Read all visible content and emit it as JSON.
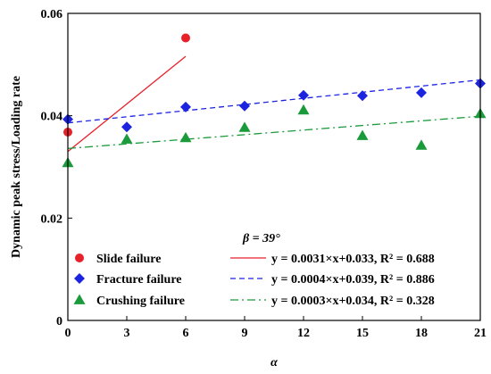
{
  "chart_data": {
    "type": "scatter",
    "title": "",
    "xlabel": "α",
    "ylabel": "Dynamic peak stress/Loading rate",
    "xlim": [
      0,
      21
    ],
    "ylim": [
      0,
      0.06
    ],
    "x_ticks": [
      "0",
      "3",
      "6",
      "9",
      "12",
      "15",
      "18",
      "21"
    ],
    "y_ticks": [
      "0",
      "0.02",
      "0.04",
      "0.06"
    ],
    "annotation": "β = 39°",
    "legend_position": "bottom-left",
    "series": [
      {
        "name": "Slide failure",
        "marker": "circle",
        "color": "#e8202a",
        "x": [
          0,
          6
        ],
        "y": [
          0.0368,
          0.0552
        ],
        "fit": {
          "label": "y = 0.0031×x+0.033, R² = 0.688",
          "slope": 0.0031,
          "intercept": 0.033,
          "x_range": [
            0,
            6
          ],
          "line_style": "solid"
        }
      },
      {
        "name": "Fracture failure",
        "marker": "diamond",
        "color": "#1c24e0",
        "x": [
          0,
          3,
          6,
          9,
          12,
          15,
          18,
          21
        ],
        "y": [
          0.0393,
          0.0378,
          0.0417,
          0.0419,
          0.044,
          0.0439,
          0.0445,
          0.0463
        ],
        "fit": {
          "label": "y = 0.0004×x+0.039, R² = 0.886",
          "slope": 0.0004,
          "intercept": 0.0386,
          "x_range": [
            0,
            21
          ],
          "line_style": "dashed"
        }
      },
      {
        "name": "Crushing failure",
        "marker": "triangle",
        "color": "#1a9a3a",
        "x": [
          0,
          3,
          6,
          9,
          12,
          15,
          18,
          21
        ],
        "y": [
          0.0308,
          0.0354,
          0.0357,
          0.0377,
          0.0411,
          0.0361,
          0.0342,
          0.0404
        ],
        "fit": {
          "label": "y = 0.0003×x+0.034, R² = 0.328",
          "slope": 0.0003,
          "intercept": 0.0336,
          "x_range": [
            0,
            21
          ],
          "line_style": "dashdot"
        }
      }
    ]
  }
}
